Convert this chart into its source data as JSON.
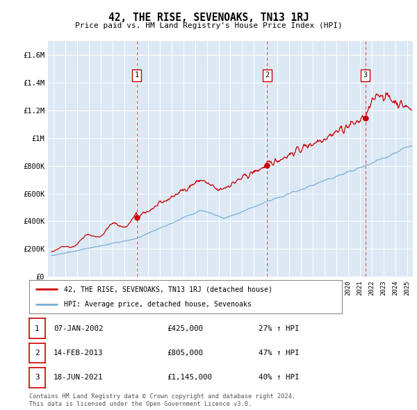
{
  "title": "42, THE RISE, SEVENOAKS, TN13 1RJ",
  "subtitle": "Price paid vs. HM Land Registry's House Price Index (HPI)",
  "ylim": [
    0,
    1700000
  ],
  "yticks": [
    0,
    200000,
    400000,
    600000,
    800000,
    1000000,
    1200000,
    1400000,
    1600000
  ],
  "ytick_labels": [
    "£0",
    "£200K",
    "£400K",
    "£600K",
    "£800K",
    "£1M",
    "£1.2M",
    "£1.4M",
    "£1.6M"
  ],
  "background_color": "#dce9f5",
  "line1_color": "#cc0000",
  "line2_color": "#7bafd4",
  "sale1_date": 2002.04,
  "sale1_price": 425000,
  "sale1_label": "07-JAN-2002",
  "sale1_hpi": "27% ↑ HPI",
  "sale2_date": 2013.12,
  "sale2_price": 805000,
  "sale2_label": "14-FEB-2013",
  "sale2_hpi": "47% ↑ HPI",
  "sale3_date": 2021.46,
  "sale3_price": 1145000,
  "sale3_label": "18-JUN-2021",
  "sale3_hpi": "40% ↑ HPI",
  "legend1": "42, THE RISE, SEVENOAKS, TN13 1RJ (detached house)",
  "legend2": "HPI: Average price, detached house, Sevenoaks",
  "footer1": "Contains HM Land Registry data © Crown copyright and database right 2024.",
  "footer2": "This data is licensed under the Open Government Licence v3.0.",
  "xmin": 1994.5,
  "xmax": 2025.5
}
